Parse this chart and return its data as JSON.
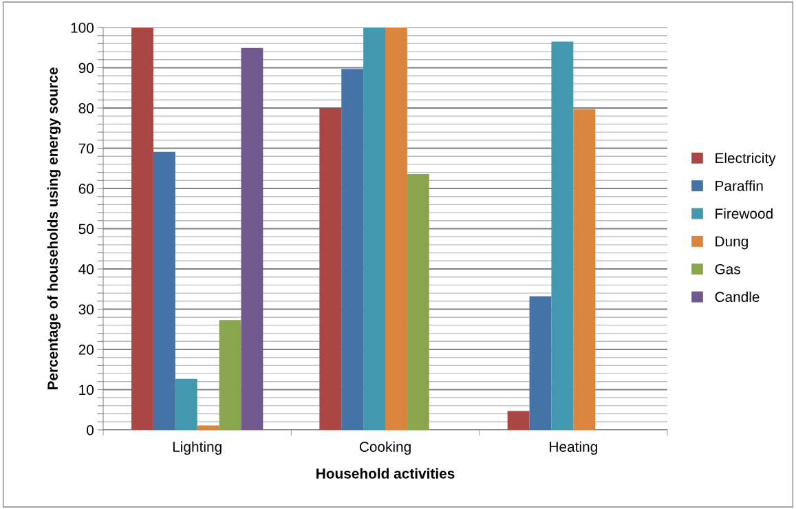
{
  "chart_data": {
    "type": "bar",
    "xlabel": "Household activities",
    "ylabel": "Percentage of households using energy source",
    "categories": [
      "Lighting",
      "Cooking",
      "Heating"
    ],
    "series": [
      {
        "name": "Electricity",
        "color": "#aa4643",
        "values": [
          100,
          80,
          4.7
        ]
      },
      {
        "name": "Paraffin",
        "color": "#4572a7",
        "values": [
          69.1,
          89.7,
          33.2
        ]
      },
      {
        "name": "Firewood",
        "color": "#4198af",
        "values": [
          12.7,
          100,
          96.5
        ]
      },
      {
        "name": "Dung",
        "color": "#db843d",
        "values": [
          1.1,
          100,
          79.7
        ]
      },
      {
        "name": "Gas",
        "color": "#89a54e",
        "values": [
          27.3,
          63.6,
          null
        ]
      },
      {
        "name": "Candle",
        "color": "#71588f",
        "values": [
          94.9,
          null,
          null
        ]
      }
    ],
    "ylim": [
      0,
      100
    ],
    "yticks": [
      0,
      {
        "value": 2,
        "label": null
      },
      {
        "value": 4,
        "label": null
      },
      {
        "value": 6,
        "label": null
      },
      {
        "value": 8,
        "label": null
      },
      10,
      {
        "value": 12,
        "label": null
      },
      {
        "value": 14,
        "label": null
      },
      {
        "value": 16,
        "label": null
      },
      {
        "value": 18,
        "label": null
      },
      20,
      {
        "value": 22,
        "label": null
      },
      {
        "value": 24,
        "label": null
      },
      {
        "value": 26,
        "label": null
      },
      {
        "value": 28,
        "label": null
      },
      30,
      {
        "value": 32,
        "label": null
      },
      {
        "value": 34,
        "label": null
      },
      {
        "value": 36,
        "label": null
      },
      {
        "value": 38,
        "label": null
      },
      40,
      {
        "value": 42,
        "label": null
      },
      {
        "value": 44,
        "label": null
      },
      {
        "value": 46,
        "label": null
      },
      {
        "value": 48,
        "label": null
      },
      50,
      {
        "value": 52,
        "label": null
      },
      {
        "value": 54,
        "label": null
      },
      {
        "value": 56,
        "label": null
      },
      {
        "value": 58,
        "label": null
      },
      60,
      {
        "value": 62,
        "label": null
      },
      {
        "value": 64,
        "label": null
      },
      {
        "value": 66,
        "label": null
      },
      {
        "value": 68,
        "label": null
      },
      70,
      {
        "value": 72,
        "label": null
      },
      {
        "value": 74,
        "label": null
      },
      {
        "value": 76,
        "label": null
      },
      {
        "value": 78,
        "label": null
      },
      80,
      {
        "value": 82,
        "label": null
      },
      {
        "value": 84,
        "label": null
      },
      {
        "value": 86,
        "label": null
      },
      {
        "value": 88,
        "label": null
      },
      90,
      {
        "value": 92,
        "label": null
      },
      {
        "value": 94,
        "label": null
      },
      {
        "value": 96,
        "label": null
      },
      {
        "value": 98,
        "label": null
      },
      100
    ],
    "grid": "y",
    "legend": "right"
  }
}
